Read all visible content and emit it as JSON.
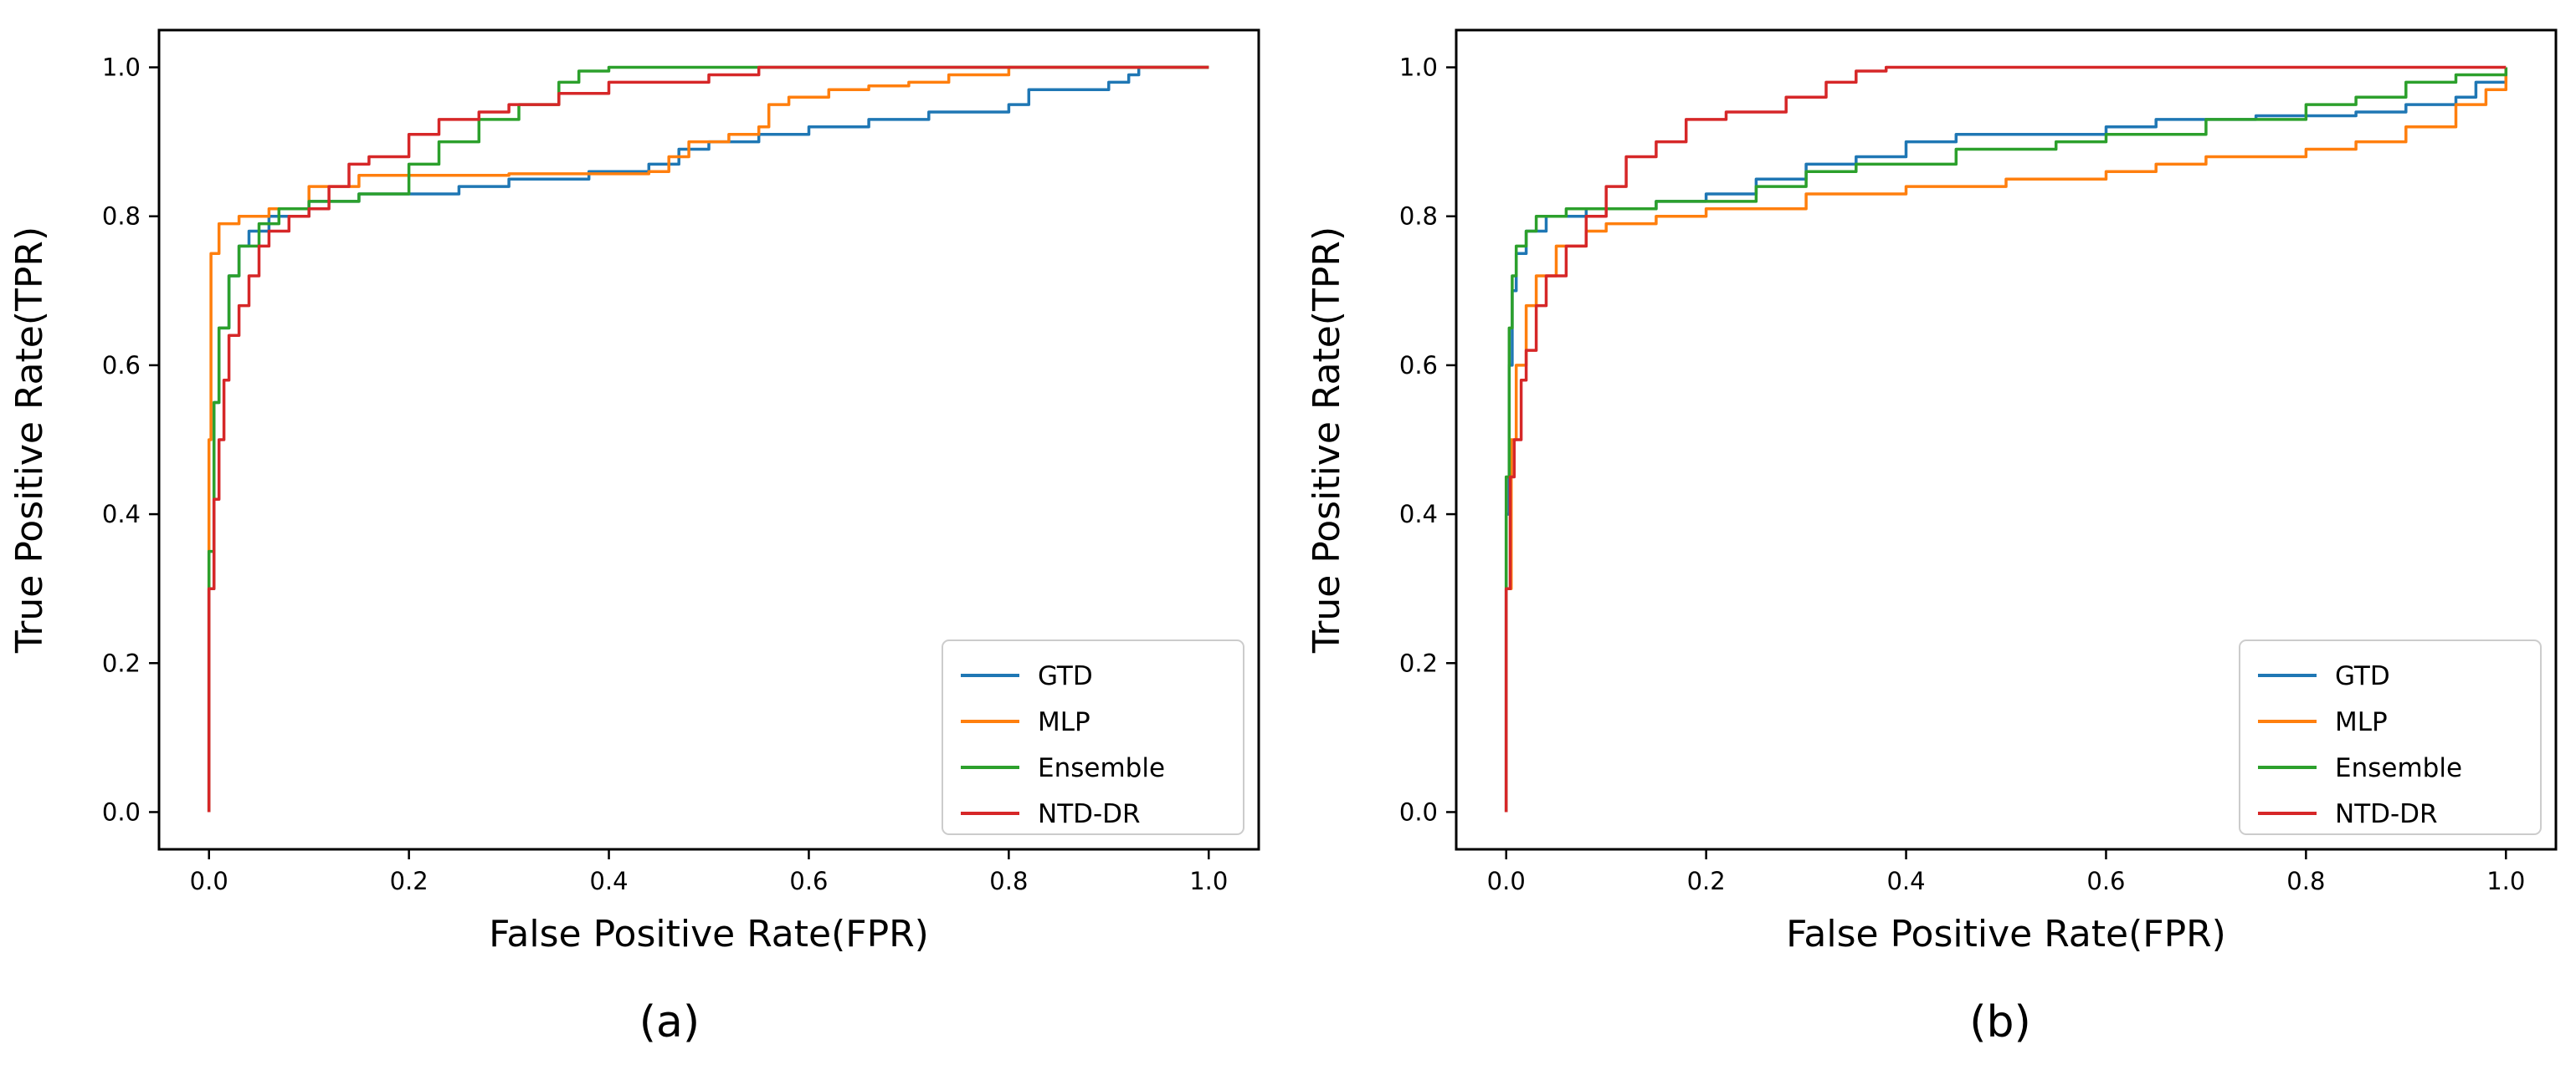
{
  "chart_data": [
    {
      "type": "line",
      "panel_label": "(a)",
      "xlabel": "False Positive Rate(FPR)",
      "ylabel": "True Positive Rate(TPR)",
      "xlim": [
        -0.05,
        1.05
      ],
      "ylim": [
        -0.05,
        1.05
      ],
      "xticks": [
        0.0,
        0.2,
        0.4,
        0.6,
        0.8,
        1.0
      ],
      "xtick_labels": [
        "0.0",
        "0.2",
        "0.4",
        "0.6",
        "0.8",
        "1.0"
      ],
      "yticks": [
        0.0,
        0.2,
        0.4,
        0.6,
        0.8,
        1.0
      ],
      "ytick_labels": [
        "0.0",
        "0.2",
        "0.4",
        "0.6",
        "0.8",
        "1.0"
      ],
      "legend_position": "lower-right",
      "series": [
        {
          "name": "GTD",
          "color": "#1f77b4",
          "points": [
            [
              0,
              0
            ],
            [
              0,
              0.3
            ],
            [
              0.005,
              0.55
            ],
            [
              0.01,
              0.65
            ],
            [
              0.02,
              0.72
            ],
            [
              0.03,
              0.76
            ],
            [
              0.04,
              0.78
            ],
            [
              0.06,
              0.8
            ],
            [
              0.1,
              0.82
            ],
            [
              0.15,
              0.83
            ],
            [
              0.25,
              0.84
            ],
            [
              0.3,
              0.85
            ],
            [
              0.38,
              0.86
            ],
            [
              0.44,
              0.87
            ],
            [
              0.47,
              0.89
            ],
            [
              0.5,
              0.9
            ],
            [
              0.55,
              0.91
            ],
            [
              0.6,
              0.92
            ],
            [
              0.66,
              0.93
            ],
            [
              0.72,
              0.94
            ],
            [
              0.8,
              0.95
            ],
            [
              0.82,
              0.97
            ],
            [
              0.9,
              0.98
            ],
            [
              0.92,
              0.99
            ],
            [
              0.93,
              1.0
            ],
            [
              1.0,
              1.0
            ]
          ]
        },
        {
          "name": "MLP",
          "color": "#ff7f0e",
          "points": [
            [
              0,
              0
            ],
            [
              0,
              0.5
            ],
            [
              0.002,
              0.75
            ],
            [
              0.01,
              0.79
            ],
            [
              0.03,
              0.8
            ],
            [
              0.06,
              0.81
            ],
            [
              0.1,
              0.84
            ],
            [
              0.15,
              0.855
            ],
            [
              0.3,
              0.857
            ],
            [
              0.44,
              0.86
            ],
            [
              0.46,
              0.88
            ],
            [
              0.48,
              0.9
            ],
            [
              0.52,
              0.91
            ],
            [
              0.55,
              0.92
            ],
            [
              0.56,
              0.95
            ],
            [
              0.58,
              0.96
            ],
            [
              0.62,
              0.97
            ],
            [
              0.66,
              0.975
            ],
            [
              0.7,
              0.98
            ],
            [
              0.74,
              0.99
            ],
            [
              0.8,
              1.0
            ],
            [
              1.0,
              1.0
            ]
          ]
        },
        {
          "name": "Ensemble",
          "color": "#2ca02c",
          "points": [
            [
              0,
              0
            ],
            [
              0,
              0.35
            ],
            [
              0.005,
              0.55
            ],
            [
              0.01,
              0.65
            ],
            [
              0.02,
              0.72
            ],
            [
              0.03,
              0.76
            ],
            [
              0.05,
              0.79
            ],
            [
              0.07,
              0.81
            ],
            [
              0.1,
              0.82
            ],
            [
              0.15,
              0.83
            ],
            [
              0.2,
              0.87
            ],
            [
              0.23,
              0.9
            ],
            [
              0.27,
              0.93
            ],
            [
              0.31,
              0.95
            ],
            [
              0.35,
              0.98
            ],
            [
              0.37,
              0.995
            ],
            [
              0.4,
              1.0
            ],
            [
              1.0,
              1.0
            ]
          ]
        },
        {
          "name": "NTD-DR",
          "color": "#d62728",
          "points": [
            [
              0,
              0
            ],
            [
              0,
              0.3
            ],
            [
              0.005,
              0.42
            ],
            [
              0.01,
              0.5
            ],
            [
              0.015,
              0.58
            ],
            [
              0.02,
              0.64
            ],
            [
              0.03,
              0.68
            ],
            [
              0.04,
              0.72
            ],
            [
              0.05,
              0.76
            ],
            [
              0.06,
              0.78
            ],
            [
              0.08,
              0.8
            ],
            [
              0.1,
              0.81
            ],
            [
              0.12,
              0.84
            ],
            [
              0.14,
              0.87
            ],
            [
              0.16,
              0.88
            ],
            [
              0.2,
              0.91
            ],
            [
              0.23,
              0.93
            ],
            [
              0.27,
              0.94
            ],
            [
              0.3,
              0.95
            ],
            [
              0.35,
              0.965
            ],
            [
              0.4,
              0.98
            ],
            [
              0.5,
              0.99
            ],
            [
              0.55,
              1.0
            ],
            [
              1.0,
              1.0
            ]
          ]
        }
      ]
    },
    {
      "type": "line",
      "panel_label": "(b)",
      "xlabel": "False Positive Rate(FPR)",
      "ylabel": "True Positive Rate(TPR)",
      "xlim": [
        -0.05,
        1.05
      ],
      "ylim": [
        -0.05,
        1.05
      ],
      "xticks": [
        0.0,
        0.2,
        0.4,
        0.6,
        0.8,
        1.0
      ],
      "xtick_labels": [
        "0.0",
        "0.2",
        "0.4",
        "0.6",
        "0.8",
        "1.0"
      ],
      "yticks": [
        0.0,
        0.2,
        0.4,
        0.6,
        0.8,
        1.0
      ],
      "ytick_labels": [
        "0.0",
        "0.2",
        "0.4",
        "0.6",
        "0.8",
        "1.0"
      ],
      "legend_position": "lower-right",
      "series": [
        {
          "name": "GTD",
          "color": "#1f77b4",
          "points": [
            [
              0,
              0
            ],
            [
              0,
              0.4
            ],
            [
              0.003,
              0.6
            ],
            [
              0.006,
              0.7
            ],
            [
              0.01,
              0.75
            ],
            [
              0.02,
              0.78
            ],
            [
              0.04,
              0.8
            ],
            [
              0.08,
              0.81
            ],
            [
              0.15,
              0.82
            ],
            [
              0.2,
              0.83
            ],
            [
              0.25,
              0.85
            ],
            [
              0.3,
              0.87
            ],
            [
              0.35,
              0.88
            ],
            [
              0.4,
              0.9
            ],
            [
              0.45,
              0.91
            ],
            [
              0.5,
              0.91
            ],
            [
              0.6,
              0.92
            ],
            [
              0.65,
              0.93
            ],
            [
              0.75,
              0.935
            ],
            [
              0.85,
              0.94
            ],
            [
              0.9,
              0.95
            ],
            [
              0.95,
              0.96
            ],
            [
              0.97,
              0.98
            ],
            [
              1.0,
              1.0
            ]
          ]
        },
        {
          "name": "MLP",
          "color": "#ff7f0e",
          "points": [
            [
              0,
              0
            ],
            [
              0,
              0.3
            ],
            [
              0.005,
              0.5
            ],
            [
              0.01,
              0.6
            ],
            [
              0.02,
              0.68
            ],
            [
              0.03,
              0.72
            ],
            [
              0.05,
              0.76
            ],
            [
              0.08,
              0.78
            ],
            [
              0.1,
              0.79
            ],
            [
              0.15,
              0.8
            ],
            [
              0.2,
              0.81
            ],
            [
              0.3,
              0.83
            ],
            [
              0.4,
              0.84
            ],
            [
              0.5,
              0.85
            ],
            [
              0.6,
              0.86
            ],
            [
              0.65,
              0.87
            ],
            [
              0.7,
              0.88
            ],
            [
              0.8,
              0.89
            ],
            [
              0.85,
              0.9
            ],
            [
              0.9,
              0.92
            ],
            [
              0.95,
              0.95
            ],
            [
              0.98,
              0.97
            ],
            [
              1.0,
              1.0
            ]
          ]
        },
        {
          "name": "Ensemble",
          "color": "#2ca02c",
          "points": [
            [
              0,
              0
            ],
            [
              0,
              0.45
            ],
            [
              0.003,
              0.65
            ],
            [
              0.006,
              0.72
            ],
            [
              0.01,
              0.76
            ],
            [
              0.02,
              0.78
            ],
            [
              0.03,
              0.8
            ],
            [
              0.06,
              0.81
            ],
            [
              0.15,
              0.82
            ],
            [
              0.25,
              0.84
            ],
            [
              0.3,
              0.86
            ],
            [
              0.35,
              0.87
            ],
            [
              0.45,
              0.89
            ],
            [
              0.55,
              0.9
            ],
            [
              0.6,
              0.91
            ],
            [
              0.7,
              0.93
            ],
            [
              0.8,
              0.95
            ],
            [
              0.85,
              0.96
            ],
            [
              0.9,
              0.98
            ],
            [
              0.95,
              0.99
            ],
            [
              1.0,
              1.0
            ]
          ]
        },
        {
          "name": "NTD-DR",
          "color": "#d62728",
          "points": [
            [
              0,
              0
            ],
            [
              0,
              0.3
            ],
            [
              0.004,
              0.45
            ],
            [
              0.008,
              0.5
            ],
            [
              0.015,
              0.58
            ],
            [
              0.02,
              0.62
            ],
            [
              0.03,
              0.68
            ],
            [
              0.04,
              0.72
            ],
            [
              0.06,
              0.76
            ],
            [
              0.08,
              0.8
            ],
            [
              0.1,
              0.84
            ],
            [
              0.12,
              0.88
            ],
            [
              0.15,
              0.9
            ],
            [
              0.18,
              0.93
            ],
            [
              0.22,
              0.94
            ],
            [
              0.28,
              0.96
            ],
            [
              0.32,
              0.98
            ],
            [
              0.35,
              0.995
            ],
            [
              0.38,
              1.0
            ],
            [
              1.0,
              1.0
            ]
          ]
        }
      ]
    }
  ]
}
